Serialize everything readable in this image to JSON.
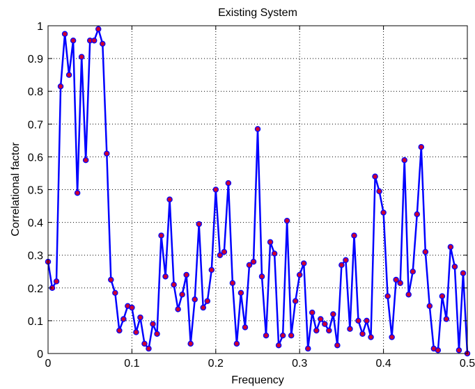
{
  "chart_data": {
    "type": "line",
    "title": "Existing System",
    "xlabel": "Frequency",
    "ylabel": "Correlational factor",
    "xlim": [
      0,
      0.5
    ],
    "ylim": [
      0,
      1
    ],
    "grid": true,
    "x_ticks": [
      "0",
      "0.1",
      "0.2",
      "0.3",
      "0.4",
      "0.5"
    ],
    "y_ticks": [
      "0",
      "0.1",
      "0.2",
      "0.3",
      "0.4",
      "0.5",
      "0.6",
      "0.7",
      "0.8",
      "0.9",
      "1"
    ],
    "line_color": "#0000ff",
    "marker_color": "#cc0033",
    "series": [
      {
        "x": [
          0,
          0.005,
          0.01,
          0.015,
          0.02,
          0.025,
          0.03,
          0.035,
          0.04,
          0.045,
          0.05,
          0.055,
          0.06,
          0.065,
          0.07,
          0.075,
          0.08,
          0.085,
          0.09,
          0.095,
          0.1,
          0.105,
          0.11,
          0.115,
          0.12,
          0.125,
          0.13,
          0.135,
          0.14,
          0.145,
          0.15,
          0.155,
          0.16,
          0.165,
          0.17,
          0.175,
          0.18,
          0.185,
          0.19,
          0.195,
          0.2,
          0.205,
          0.21,
          0.215,
          0.22,
          0.225,
          0.23,
          0.235,
          0.24,
          0.245,
          0.25,
          0.255,
          0.26,
          0.265,
          0.27,
          0.275,
          0.28,
          0.285,
          0.29,
          0.295,
          0.3,
          0.305,
          0.31,
          0.315,
          0.32,
          0.325,
          0.33,
          0.335,
          0.34,
          0.345,
          0.35,
          0.355,
          0.36,
          0.365,
          0.37,
          0.375,
          0.38,
          0.385,
          0.39,
          0.395,
          0.4,
          0.405,
          0.41,
          0.415,
          0.42,
          0.425,
          0.43,
          0.435,
          0.44,
          0.445,
          0.45,
          0.455,
          0.46,
          0.465,
          0.47,
          0.475,
          0.48,
          0.485,
          0.49,
          0.495,
          0.5
        ],
        "values": [
          0.28,
          0.2,
          0.22,
          0.815,
          0.975,
          0.85,
          0.955,
          0.49,
          0.905,
          0.59,
          0.955,
          0.955,
          0.99,
          0.945,
          0.61,
          0.225,
          0.185,
          0.07,
          0.105,
          0.145,
          0.14,
          0.065,
          0.11,
          0.03,
          0.015,
          0.09,
          0.06,
          0.36,
          0.235,
          0.47,
          0.21,
          0.135,
          0.18,
          0.24,
          0.03,
          0.165,
          0.395,
          0.14,
          0.16,
          0.255,
          0.5,
          0.3,
          0.31,
          0.52,
          0.215,
          0.03,
          0.185,
          0.08,
          0.27,
          0.28,
          0.685,
          0.235,
          0.055,
          0.34,
          0.305,
          0.025,
          0.055,
          0.405,
          0.055,
          0.16,
          0.24,
          0.275,
          0.015,
          0.125,
          0.07,
          0.105,
          0.09,
          0.07,
          0.12,
          0.025,
          0.27,
          0.285,
          0.075,
          0.36,
          0.1,
          0.06,
          0.1,
          0.05,
          0.54,
          0.495,
          0.43,
          0.175,
          0.05,
          0.225,
          0.215,
          0.59,
          0.18,
          0.25,
          0.425,
          0.63,
          0.31,
          0.145,
          0.015,
          0.01,
          0.175,
          0.105,
          0.325,
          0.265,
          0.01,
          0.245,
          0.0
        ]
      }
    ]
  }
}
